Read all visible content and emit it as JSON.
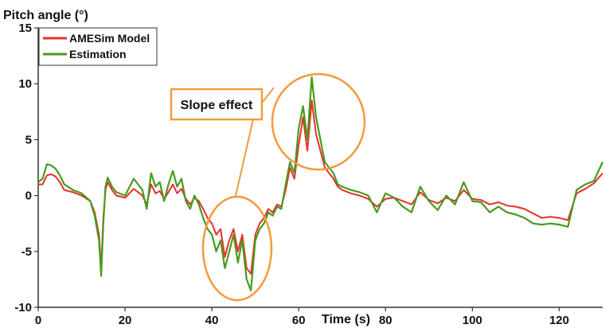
{
  "chart_data": {
    "type": "line",
    "ylabel": "Pitch angle (°)",
    "xlabel": "Time (s)",
    "xlim": [
      0,
      130
    ],
    "ylim": [
      -10,
      15
    ],
    "xticks": [
      0,
      20,
      40,
      60,
      80,
      100,
      120
    ],
    "yticks": [
      -10,
      -5,
      0,
      5,
      10,
      15
    ],
    "grid": false,
    "legend_position": "top-left",
    "series": [
      {
        "name": "AMESim Model",
        "color": "#e8302a",
        "x": [
          0,
          1,
          2,
          3,
          4,
          5,
          6,
          8,
          10,
          12,
          13,
          14,
          14.5,
          15,
          15.5,
          16,
          17,
          18,
          20,
          22,
          24,
          25,
          26,
          27,
          28,
          29,
          30,
          31,
          32,
          33,
          34,
          35,
          36,
          37,
          38,
          39,
          40,
          41,
          42,
          43,
          44,
          45,
          46,
          47,
          48,
          49,
          50,
          51,
          52,
          53,
          54,
          55,
          56,
          57,
          58,
          59,
          60,
          61,
          62,
          63,
          64,
          65,
          66,
          67,
          68,
          69,
          70,
          72,
          74,
          76,
          78,
          80,
          82,
          84,
          86,
          88,
          90,
          92,
          94,
          96,
          98,
          100,
          102,
          104,
          106,
          108,
          110,
          112,
          114,
          116,
          118,
          120,
          122,
          124,
          126,
          128,
          130
        ],
        "y": [
          1.0,
          1.0,
          1.8,
          1.9,
          1.7,
          1.2,
          0.5,
          0.3,
          0.0,
          -0.5,
          -1.5,
          -3.5,
          -6.5,
          -2.0,
          0.5,
          1.2,
          0.5,
          0.0,
          -0.2,
          0.6,
          0.0,
          -0.8,
          1.0,
          0.2,
          0.4,
          -0.3,
          0.3,
          1.0,
          0.2,
          0.6,
          -0.3,
          -0.8,
          -0.2,
          -0.5,
          -1.2,
          -2.0,
          -2.5,
          -3.5,
          -3.0,
          -5.5,
          -4.0,
          -3.0,
          -5.0,
          -3.5,
          -6.5,
          -7.0,
          -3.5,
          -2.5,
          -2.0,
          -1.2,
          -1.5,
          -0.8,
          -1.0,
          0.5,
          2.5,
          1.5,
          4.5,
          7.0,
          4.0,
          8.5,
          5.5,
          4.0,
          2.5,
          2.0,
          1.5,
          0.8,
          0.5,
          0.2,
          0.0,
          -0.3,
          -1.0,
          -0.3,
          -0.2,
          -0.5,
          -0.8,
          0.3,
          -0.4,
          -0.7,
          -0.2,
          -0.5,
          0.5,
          -0.3,
          -0.4,
          -0.8,
          -0.6,
          -0.9,
          -1.0,
          -1.2,
          -1.6,
          -2.0,
          -1.9,
          -2.0,
          -2.2,
          0.2,
          0.6,
          1.1,
          2.0
        ]
      },
      {
        "name": "Estimation",
        "color": "#4a9a1e",
        "x": [
          0,
          1,
          2,
          3,
          4,
          5,
          6,
          8,
          10,
          12,
          13,
          14,
          14.5,
          15,
          15.5,
          16,
          17,
          18,
          20,
          22,
          24,
          25,
          26,
          27,
          28,
          29,
          30,
          31,
          32,
          33,
          34,
          35,
          36,
          37,
          38,
          39,
          40,
          41,
          42,
          43,
          44,
          45,
          46,
          47,
          48,
          49,
          50,
          51,
          52,
          53,
          54,
          55,
          56,
          57,
          58,
          59,
          60,
          61,
          62,
          63,
          64,
          65,
          66,
          67,
          68,
          69,
          70,
          72,
          74,
          76,
          78,
          80,
          82,
          84,
          86,
          88,
          90,
          92,
          94,
          96,
          98,
          100,
          102,
          104,
          106,
          108,
          110,
          112,
          114,
          116,
          118,
          120,
          122,
          124,
          126,
          128,
          130
        ],
        "y": [
          1.2,
          1.5,
          2.8,
          2.7,
          2.4,
          1.8,
          1.0,
          0.5,
          0.2,
          -0.5,
          -1.8,
          -4.0,
          -7.2,
          -2.5,
          0.8,
          1.6,
          0.8,
          0.3,
          0.0,
          1.5,
          0.5,
          -1.2,
          2.0,
          0.8,
          1.2,
          -0.5,
          1.0,
          2.2,
          0.8,
          1.5,
          -0.5,
          -1.2,
          0.0,
          -0.8,
          -2.0,
          -3.0,
          -3.5,
          -5.0,
          -4.0,
          -6.5,
          -5.0,
          -3.5,
          -6.0,
          -4.0,
          -7.5,
          -8.5,
          -4.0,
          -3.0,
          -2.5,
          -1.5,
          -1.8,
          -1.0,
          -1.2,
          1.0,
          3.0,
          2.0,
          6.0,
          8.0,
          5.0,
          10.6,
          7.0,
          5.0,
          3.0,
          2.5,
          2.0,
          1.0,
          0.8,
          0.5,
          0.3,
          0.0,
          -1.5,
          0.2,
          -0.2,
          -1.0,
          -1.5,
          0.8,
          -0.5,
          -1.3,
          0.0,
          -0.8,
          1.2,
          -0.5,
          -0.6,
          -1.5,
          -1.0,
          -1.5,
          -1.7,
          -2.0,
          -2.5,
          -2.6,
          -2.5,
          -2.6,
          -2.8,
          0.5,
          1.0,
          1.3,
          3.0
        ]
      }
    ],
    "annotations": [
      {
        "text": "Slope effect"
      }
    ]
  }
}
